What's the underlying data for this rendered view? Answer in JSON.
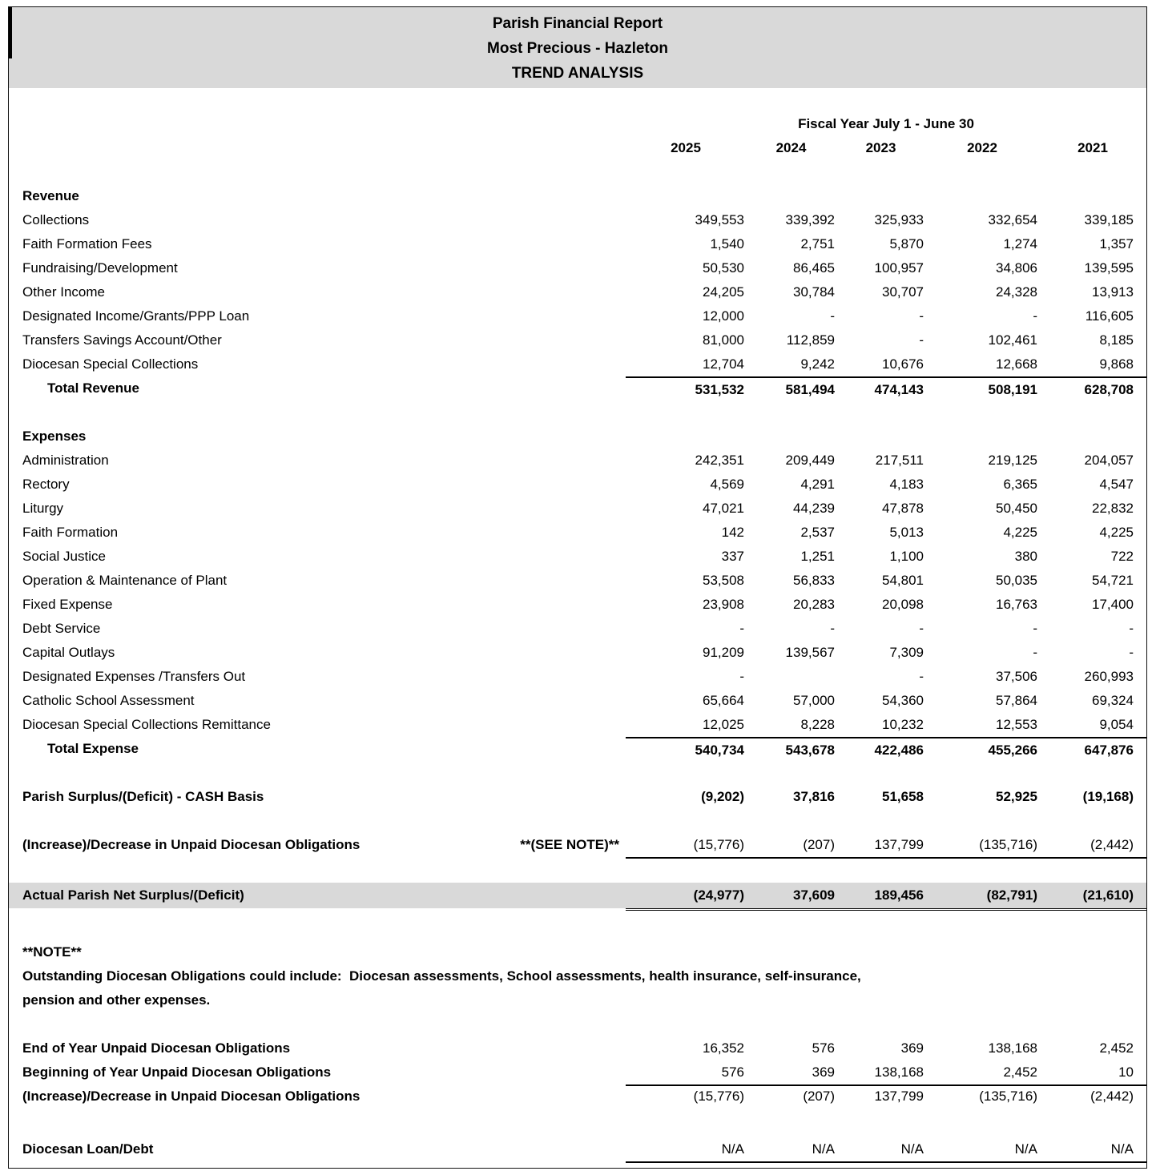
{
  "title": {
    "line1": "Parish Financial Report",
    "line2": "Most Precious - Hazleton",
    "line3": "TREND ANALYSIS"
  },
  "header": {
    "fiscal_year_label": "Fiscal Year July 1 - June 30",
    "years": [
      "2025",
      "2024",
      "2023",
      "2022",
      "2021"
    ]
  },
  "revenue": {
    "section_label": "Revenue",
    "rows": [
      {
        "label": "Collections",
        "values": [
          "349,553",
          "339,392",
          "325,933",
          "332,654",
          "339,185"
        ]
      },
      {
        "label": "Faith Formation Fees",
        "values": [
          "1,540",
          "2,751",
          "5,870",
          "1,274",
          "1,357"
        ]
      },
      {
        "label": "Fundraising/Development",
        "values": [
          "50,530",
          "86,465",
          "100,957",
          "34,806",
          "139,595"
        ]
      },
      {
        "label": "Other Income",
        "values": [
          "24,205",
          "30,784",
          "30,707",
          "24,328",
          "13,913"
        ]
      },
      {
        "label": "Designated Income/Grants/PPP Loan",
        "values": [
          "12,000",
          "-",
          "-",
          "-",
          "116,605"
        ]
      },
      {
        "label": "Transfers Savings Account/Other",
        "values": [
          "81,000",
          "112,859",
          "-",
          "102,461",
          "8,185"
        ]
      },
      {
        "label": "Diocesan Special Collections",
        "values": [
          "12,704",
          "9,242",
          "10,676",
          "12,668",
          "9,868"
        ]
      }
    ],
    "total": {
      "label": "Total Revenue",
      "values": [
        "531,532",
        "581,494",
        "474,143",
        "508,191",
        "628,708"
      ]
    }
  },
  "expenses": {
    "section_label": "Expenses",
    "rows": [
      {
        "label": "Administration",
        "values": [
          "242,351",
          "209,449",
          "217,511",
          "219,125",
          "204,057"
        ]
      },
      {
        "label": "Rectory",
        "values": [
          "4,569",
          "4,291",
          "4,183",
          "6,365",
          "4,547"
        ]
      },
      {
        "label": "Liturgy",
        "values": [
          "47,021",
          "44,239",
          "47,878",
          "50,450",
          "22,832"
        ]
      },
      {
        "label": "Faith Formation",
        "values": [
          "142",
          "2,537",
          "5,013",
          "4,225",
          "4,225"
        ]
      },
      {
        "label": "Social Justice",
        "values": [
          "337",
          "1,251",
          "1,100",
          "380",
          "722"
        ]
      },
      {
        "label": "Operation & Maintenance of Plant",
        "values": [
          "53,508",
          "56,833",
          "54,801",
          "50,035",
          "54,721"
        ]
      },
      {
        "label": "Fixed Expense",
        "values": [
          "23,908",
          "20,283",
          "20,098",
          "16,763",
          "17,400"
        ]
      },
      {
        "label": "Debt Service",
        "values": [
          "-",
          "-",
          "-",
          "-",
          "-"
        ]
      },
      {
        "label": "Capital Outlays",
        "values": [
          "91,209",
          "139,567",
          "7,309",
          "-",
          "-"
        ]
      },
      {
        "label": "Designated Expenses /Transfers Out",
        "values": [
          "-",
          "",
          "-",
          "37,506",
          "260,993"
        ]
      },
      {
        "label": "Catholic School Assessment",
        "values": [
          "65,664",
          "57,000",
          "54,360",
          "57,864",
          "69,324"
        ]
      },
      {
        "label": "Diocesan Special Collections Remittance",
        "values": [
          "12,025",
          "8,228",
          "10,232",
          "12,553",
          "9,054"
        ]
      }
    ],
    "total": {
      "label": "Total Expense",
      "values": [
        "540,734",
        "543,678",
        "422,486",
        "455,266",
        "647,876"
      ]
    }
  },
  "summary": {
    "surplus": {
      "label": "Parish Surplus/(Deficit) - CASH Basis",
      "values": [
        "(9,202)",
        "37,816",
        "51,658",
        "52,925",
        "(19,168)"
      ]
    },
    "unpaid_change": {
      "label": "(Increase)/Decrease in Unpaid Diocesan Obligations",
      "note": "**(SEE NOTE)**",
      "values": [
        "(15,776)",
        "(207)",
        "137,799",
        "(135,716)",
        "(2,442)"
      ]
    },
    "net": {
      "label": "Actual Parish Net Surplus/(Deficit)",
      "values": [
        "(24,977)",
        "37,609",
        "189,456",
        "(82,791)",
        "(21,610)"
      ]
    }
  },
  "note": {
    "title": "**NOTE**",
    "line1": "Outstanding Diocesan Obligations could include:  Diocesan assessments, School assessments, health insurance, self-insurance,",
    "line2": "pension and other expenses."
  },
  "obligations": {
    "rows": [
      {
        "label": "End of Year Unpaid Diocesan Obligations",
        "values": [
          "16,352",
          "576",
          "369",
          "138,168",
          "2,452"
        ]
      },
      {
        "label": "Beginning of Year Unpaid Diocesan Obligations",
        "values": [
          "576",
          "369",
          "138,168",
          "2,452",
          "10"
        ]
      },
      {
        "label": "(Increase)/Decrease in Unpaid Diocesan Obligations",
        "values": [
          "(15,776)",
          "(207)",
          "137,799",
          "(135,716)",
          "(2,442)"
        ]
      }
    ],
    "loan": {
      "label": "Diocesan Loan/Debt",
      "values": [
        "N/A",
        "N/A",
        "N/A",
        "N/A",
        "N/A"
      ]
    }
  },
  "colors": {
    "band_gray": "#D9D9D9",
    "text": "#000000"
  }
}
